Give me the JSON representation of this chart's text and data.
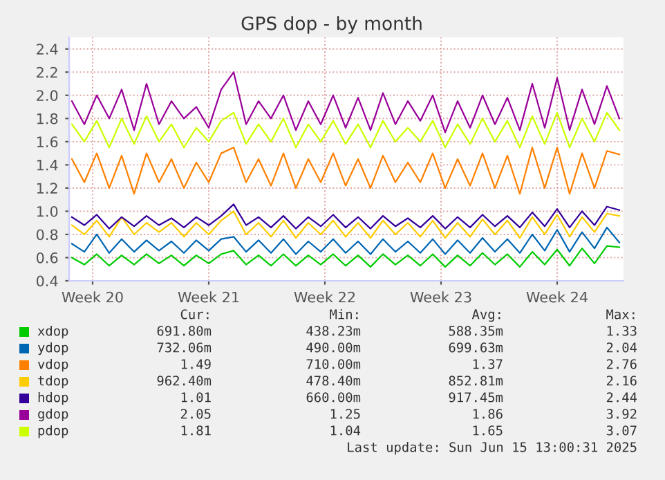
{
  "chart_data": {
    "type": "line",
    "title": "GPS dop - by month",
    "x": [
      "2025-05-10T18:00",
      "2025-05-11T12:00",
      "2025-05-12T06:00",
      "2025-05-13T00:00",
      "2025-05-13T18:00",
      "2025-05-14T12:00",
      "2025-05-15T06:00",
      "2025-05-16T00:00",
      "2025-05-16T18:00",
      "2025-05-17T12:00",
      "2025-05-18T06:00",
      "2025-05-19T00:00",
      "2025-05-19T18:00",
      "2025-05-20T12:00",
      "2025-05-21T06:00",
      "2025-05-22T00:00",
      "2025-05-22T18:00",
      "2025-05-23T12:00",
      "2025-05-24T06:00",
      "2025-05-25T00:00",
      "2025-05-25T18:00",
      "2025-05-26T12:00",
      "2025-05-27T06:00",
      "2025-05-28T00:00",
      "2025-05-28T18:00",
      "2025-05-29T12:00",
      "2025-05-30T06:00",
      "2025-05-31T00:00",
      "2025-05-31T18:00",
      "2025-06-01T12:00",
      "2025-06-02T06:00",
      "2025-06-03T00:00",
      "2025-06-03T18:00",
      "2025-06-04T12:00",
      "2025-06-05T06:00",
      "2025-06-06T00:00",
      "2025-06-06T18:00",
      "2025-06-07T12:00",
      "2025-06-08T06:00",
      "2025-06-09T00:00",
      "2025-06-09T18:00",
      "2025-06-10T12:00",
      "2025-06-11T06:00",
      "2025-06-12T00:00",
      "2025-06-12T18:00"
    ],
    "xlim": [
      "2025-05-10T14:00",
      "2025-06-13T00:00"
    ],
    "xticks": [
      {
        "value": "2025-05-12",
        "label": "Week 20"
      },
      {
        "value": "2025-05-19",
        "label": "Week 21"
      },
      {
        "value": "2025-05-26",
        "label": "Week 22"
      },
      {
        "value": "2025-06-02",
        "label": "Week 23"
      },
      {
        "value": "2025-06-09",
        "label": "Week 24"
      }
    ],
    "ylim": [
      0.4,
      2.5
    ],
    "yticks": [
      0.4,
      0.6,
      0.8,
      {
        "value": 1.0,
        "label": "1.0"
      },
      1.2,
      1.4,
      1.6,
      1.8,
      {
        "value": 2.0,
        "label": "2.0"
      },
      2.2,
      2.4
    ],
    "grid": true,
    "legend": "bottom",
    "series": [
      {
        "name": "xdop",
        "color": "#00cc00",
        "values": [
          0.6,
          0.54,
          0.63,
          0.53,
          0.62,
          0.54,
          0.63,
          0.55,
          0.62,
          0.53,
          0.62,
          0.55,
          0.63,
          0.66,
          0.54,
          0.62,
          0.53,
          0.63,
          0.53,
          0.62,
          0.54,
          0.63,
          0.53,
          0.62,
          0.52,
          0.63,
          0.54,
          0.62,
          0.53,
          0.63,
          0.52,
          0.62,
          0.53,
          0.64,
          0.54,
          0.63,
          0.52,
          0.65,
          0.54,
          0.67,
          0.53,
          0.68,
          0.55,
          0.7,
          0.69
        ]
      },
      {
        "name": "ydop",
        "color": "#0066b3",
        "values": [
          0.72,
          0.65,
          0.8,
          0.64,
          0.76,
          0.65,
          0.75,
          0.66,
          0.74,
          0.64,
          0.75,
          0.66,
          0.76,
          0.78,
          0.65,
          0.75,
          0.64,
          0.76,
          0.63,
          0.74,
          0.65,
          0.76,
          0.64,
          0.74,
          0.63,
          0.76,
          0.65,
          0.74,
          0.64,
          0.76,
          0.63,
          0.75,
          0.64,
          0.77,
          0.65,
          0.76,
          0.64,
          0.8,
          0.66,
          0.84,
          0.65,
          0.82,
          0.68,
          0.86,
          0.73
        ]
      },
      {
        "name": "vdop",
        "color": "#ff8000",
        "values": [
          1.45,
          1.25,
          1.5,
          1.2,
          1.48,
          1.15,
          1.5,
          1.25,
          1.45,
          1.2,
          1.42,
          1.25,
          1.5,
          1.55,
          1.25,
          1.45,
          1.22,
          1.5,
          1.2,
          1.45,
          1.25,
          1.5,
          1.22,
          1.45,
          1.2,
          1.48,
          1.25,
          1.42,
          1.25,
          1.5,
          1.2,
          1.45,
          1.22,
          1.5,
          1.2,
          1.48,
          1.15,
          1.55,
          1.2,
          1.55,
          1.15,
          1.5,
          1.2,
          1.52,
          1.49
        ]
      },
      {
        "name": "tdop",
        "color": "#ffcc00",
        "values": [
          0.88,
          0.8,
          0.92,
          0.78,
          0.95,
          0.8,
          0.9,
          0.82,
          0.9,
          0.78,
          0.9,
          0.8,
          0.92,
          1.0,
          0.8,
          0.9,
          0.78,
          0.92,
          0.77,
          0.9,
          0.8,
          0.92,
          0.78,
          0.9,
          0.77,
          0.92,
          0.8,
          0.9,
          0.78,
          0.92,
          0.77,
          0.9,
          0.78,
          0.93,
          0.8,
          0.92,
          0.77,
          0.95,
          0.8,
          0.97,
          0.78,
          0.95,
          0.82,
          0.98,
          0.96
        ]
      },
      {
        "name": "hdop",
        "color": "#330099",
        "values": [
          0.95,
          0.88,
          0.97,
          0.85,
          0.95,
          0.87,
          0.96,
          0.88,
          0.94,
          0.86,
          0.95,
          0.88,
          0.96,
          1.06,
          0.88,
          0.95,
          0.86,
          0.96,
          0.85,
          0.95,
          0.87,
          0.97,
          0.86,
          0.95,
          0.85,
          0.96,
          0.87,
          0.94,
          0.86,
          0.96,
          0.85,
          0.95,
          0.86,
          0.97,
          0.87,
          0.96,
          0.86,
          0.99,
          0.87,
          1.02,
          0.86,
          1.0,
          0.88,
          1.04,
          1.01
        ]
      },
      {
        "name": "gdop",
        "color": "#990099",
        "values": [
          1.95,
          1.75,
          2.0,
          1.8,
          2.05,
          1.7,
          2.1,
          1.75,
          1.95,
          1.8,
          1.9,
          1.72,
          2.05,
          2.2,
          1.75,
          1.95,
          1.8,
          2.0,
          1.7,
          1.95,
          1.75,
          2.0,
          1.72,
          1.98,
          1.7,
          2.02,
          1.75,
          1.95,
          1.78,
          2.0,
          1.68,
          1.95,
          1.72,
          2.0,
          1.75,
          1.98,
          1.7,
          2.1,
          1.72,
          2.15,
          1.7,
          2.05,
          1.75,
          2.08,
          1.8
        ]
      },
      {
        "name": "pdop",
        "color": "#ccff00",
        "values": [
          1.75,
          1.6,
          1.78,
          1.55,
          1.8,
          1.58,
          1.82,
          1.6,
          1.75,
          1.55,
          1.72,
          1.6,
          1.78,
          1.85,
          1.58,
          1.75,
          1.6,
          1.8,
          1.55,
          1.75,
          1.6,
          1.78,
          1.58,
          1.75,
          1.55,
          1.78,
          1.6,
          1.72,
          1.6,
          1.78,
          1.55,
          1.75,
          1.58,
          1.8,
          1.6,
          1.78,
          1.55,
          1.82,
          1.58,
          1.85,
          1.55,
          1.8,
          1.6,
          1.85,
          1.7
        ]
      }
    ],
    "annotations": [
      "Cur:",
      "Min:",
      "Avg:",
      "Max:",
      "691.80m",
      "438.23m",
      "588.35m",
      "1.33",
      "732.06m",
      "490.00m",
      "699.63m",
      "2.04",
      "1.49",
      "710.00m",
      "1.37",
      "2.76",
      "962.40m",
      "478.40m",
      "852.81m",
      "2.16",
      "1.01",
      "660.00m",
      "917.45m",
      "2.44",
      "2.05",
      "1.25",
      "1.86",
      "3.92",
      "1.81",
      "1.04",
      "1.65",
      "3.07",
      "Last update: Sun Jun 15 13:00:31 2025"
    ]
  }
}
